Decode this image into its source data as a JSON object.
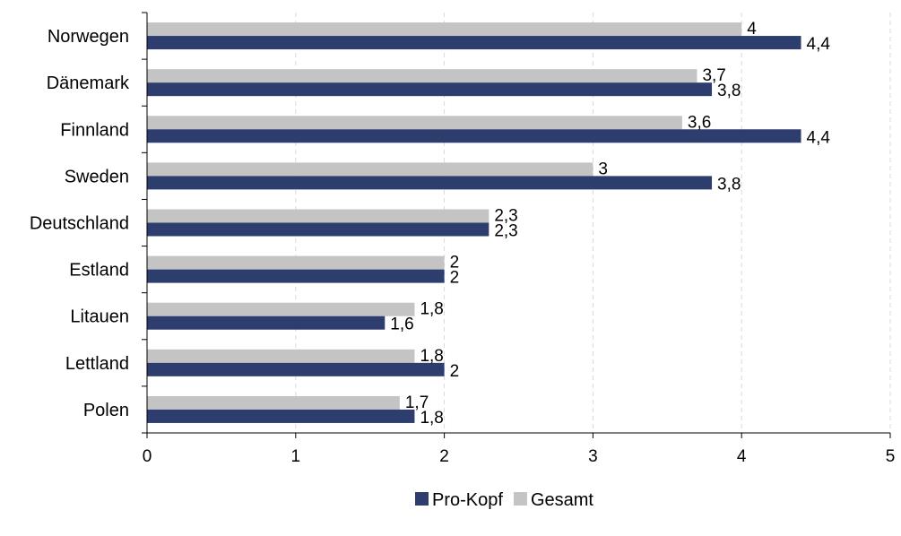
{
  "chart_data": {
    "type": "bar",
    "orientation": "horizontal",
    "categories": [
      "Norwegen",
      "Dänemark",
      "Finnland",
      "Sweden",
      "Deutschland",
      "Estland",
      "Litauen",
      "Lettland",
      "Polen"
    ],
    "series": [
      {
        "name": "Gesamt",
        "values": [
          4,
          3.7,
          3.6,
          3,
          2.3,
          2,
          1.8,
          1.8,
          1.7
        ],
        "labels": [
          "4",
          "3,7",
          "3,6",
          "3",
          "2,3",
          "2",
          "1,8",
          "1,8",
          "1,7"
        ]
      },
      {
        "name": "Pro-Kopf",
        "values": [
          4.4,
          3.8,
          4.4,
          3.8,
          2.3,
          2,
          1.6,
          2,
          1.8
        ],
        "labels": [
          "4,4",
          "3,8",
          "4,4",
          "3,8",
          "2,3",
          "2",
          "1,6",
          "2",
          "1,8"
        ]
      }
    ],
    "xlim": [
      0,
      5
    ],
    "x_ticks": [
      "0",
      "1",
      "2",
      "3",
      "4",
      "5"
    ],
    "grid": "vertical dashed",
    "legend_position": "bottom",
    "legend_order": [
      "Pro-Kopf",
      "Gesamt"
    ],
    "colors": {
      "Pro-Kopf": "#2d3e6e",
      "Gesamt": "#c4c4c4"
    }
  }
}
